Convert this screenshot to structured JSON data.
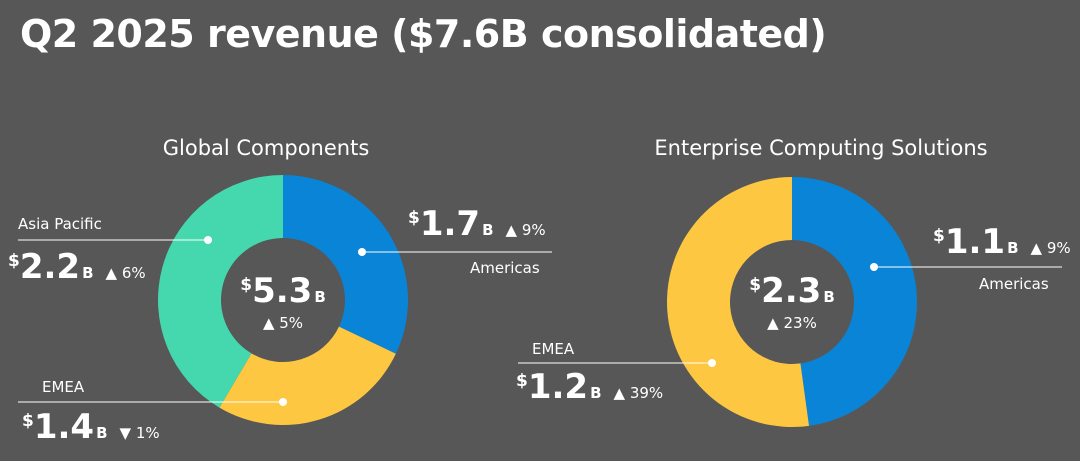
{
  "title": "Q2 2025 revenue ($7.6B consolidated)",
  "colors": {
    "background": "#575757",
    "Americas": "#0a84d6",
    "EMEA": "#fdc742",
    "Asia Pacific": "#45d8ae",
    "hole": "#575757",
    "leader": "#ffffff"
  },
  "chart_data": [
    {
      "type": "donut",
      "title": "Global Components",
      "center": {
        "currency": "$",
        "value": "5.3",
        "unit": "B",
        "arrow": "▲",
        "change": "5%"
      },
      "categories": [
        "Americas",
        "EMEA",
        "Asia Pacific"
      ],
      "values": [
        1.7,
        1.4,
        2.2
      ],
      "labels": [
        {
          "name": "Americas",
          "currency": "$",
          "value": "1.7",
          "unit": "B",
          "arrow": "▲",
          "change": "9%"
        },
        {
          "name": "EMEA",
          "currency": "$",
          "value": "1.4",
          "unit": "B",
          "arrow": "▼",
          "change": "1%"
        },
        {
          "name": "Asia Pacific",
          "currency": "$",
          "value": "2.2",
          "unit": "B",
          "arrow": "▲",
          "change": "6%"
        }
      ]
    },
    {
      "type": "donut",
      "title": "Enterprise Computing Solutions",
      "center": {
        "currency": "$",
        "value": "2.3",
        "unit": "B",
        "arrow": "▲",
        "change": "23%"
      },
      "categories": [
        "Americas",
        "EMEA"
      ],
      "values": [
        1.1,
        1.2
      ],
      "labels": [
        {
          "name": "Americas",
          "currency": "$",
          "value": "1.1",
          "unit": "B",
          "arrow": "▲",
          "change": "9%"
        },
        {
          "name": "EMEA",
          "currency": "$",
          "value": "1.2",
          "unit": "B",
          "arrow": "▲",
          "change": "39%"
        }
      ]
    }
  ]
}
